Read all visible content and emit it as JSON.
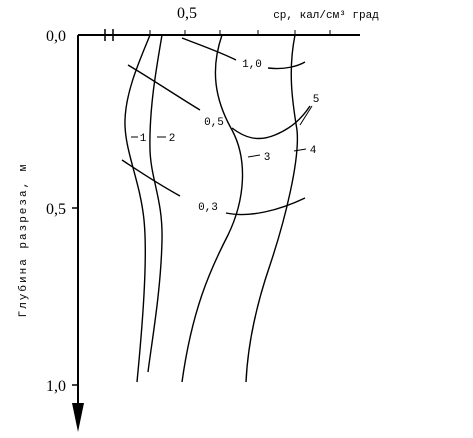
{
  "axes": {
    "x_label": "ср, кал/см³ град",
    "x_ticks": [
      "0,5"
    ],
    "y_label": "Глубина разреза, м",
    "y_ticks": [
      "0,0",
      "0,5",
      "1,0"
    ]
  },
  "curve_labels": [
    "1",
    "2",
    "3",
    "4",
    "5"
  ],
  "isoline_labels": [
    "1,0",
    "0,5",
    "0,3"
  ]
}
